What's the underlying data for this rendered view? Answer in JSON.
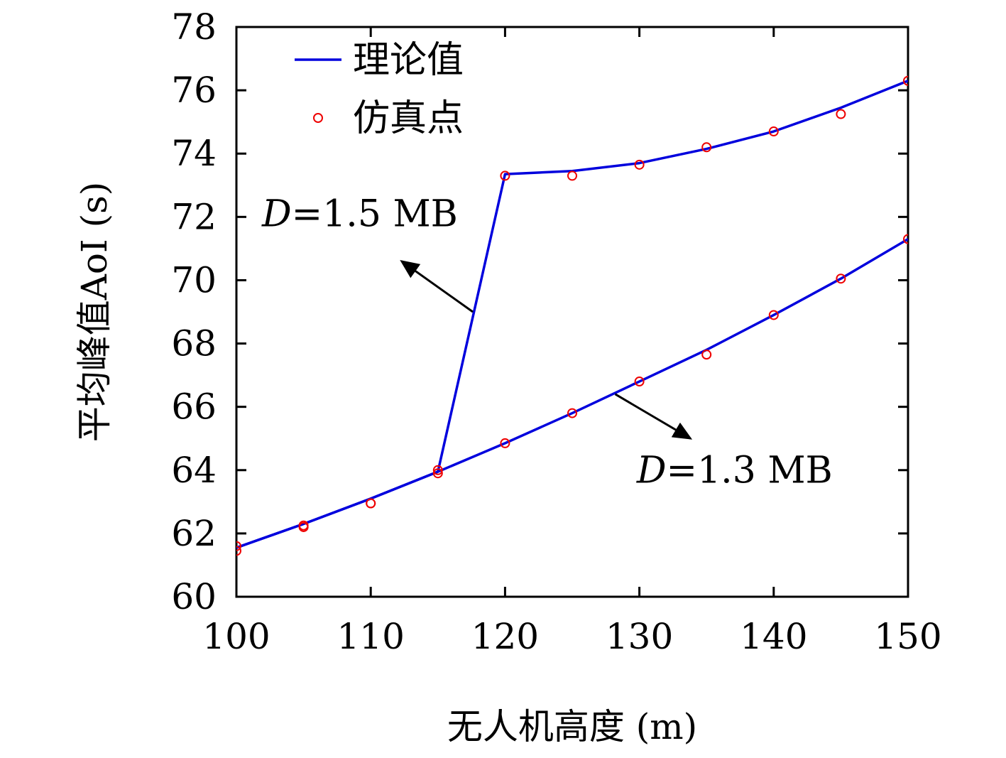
{
  "chart_data": {
    "type": "line",
    "xlabel": "无人机高度 (m)",
    "ylabel": "平均峰值AoI (s)",
    "xlim": [
      100,
      150
    ],
    "ylim": [
      60,
      78
    ],
    "xticks": [
      100,
      110,
      120,
      130,
      140,
      150
    ],
    "yticks": [
      60,
      62,
      64,
      66,
      68,
      70,
      72,
      74,
      76,
      78
    ],
    "legend_position": "top-left",
    "grid": false,
    "legend": [
      {
        "label": "理论值",
        "kind": "line",
        "color": "#0000dd"
      },
      {
        "label": "仿真点",
        "kind": "marker",
        "color": "#ee0000"
      }
    ],
    "series": [
      {
        "name": "D=1.5 MB",
        "color_theory": "#0000dd",
        "color_sim": "#ee0000",
        "x": [
          100,
          105,
          110,
          115,
          120,
          125,
          130,
          135,
          140,
          145,
          150
        ],
        "theory": [
          61.55,
          62.3,
          63.1,
          63.95,
          73.35,
          73.45,
          73.7,
          74.15,
          74.7,
          75.45,
          76.3
        ],
        "simulation": [
          61.6,
          62.25,
          62.95,
          64.0,
          73.3,
          73.3,
          73.65,
          74.2,
          74.7,
          75.25,
          76.3
        ]
      },
      {
        "name": "D=1.3 MB",
        "color_theory": "#0000dd",
        "color_sim": "#ee0000",
        "x": [
          100,
          105,
          110,
          115,
          120,
          125,
          130,
          135,
          140,
          145,
          150
        ],
        "theory": [
          61.55,
          62.3,
          63.1,
          63.95,
          64.85,
          65.8,
          66.8,
          67.8,
          68.9,
          70.05,
          71.3
        ],
        "simulation": [
          61.45,
          62.2,
          62.95,
          63.9,
          64.85,
          65.8,
          66.8,
          67.65,
          68.9,
          70.05,
          71.3
        ]
      }
    ],
    "annotations": [
      {
        "series": "D=1.5 MB",
        "var": "D",
        "text": "=1.5 MB",
        "point_x": 117.6,
        "point_y": 69.0,
        "to_x": 112.3,
        "to_y": 70.6,
        "label_x": 101.9,
        "label_y": 71.7
      },
      {
        "series": "D=1.3 MB",
        "var": "D",
        "text": "=1.3 MB",
        "point_x": 128.2,
        "point_y": 66.4,
        "to_x": 133.8,
        "to_y": 65.0,
        "label_x": 129.8,
        "label_y": 63.6
      }
    ]
  }
}
